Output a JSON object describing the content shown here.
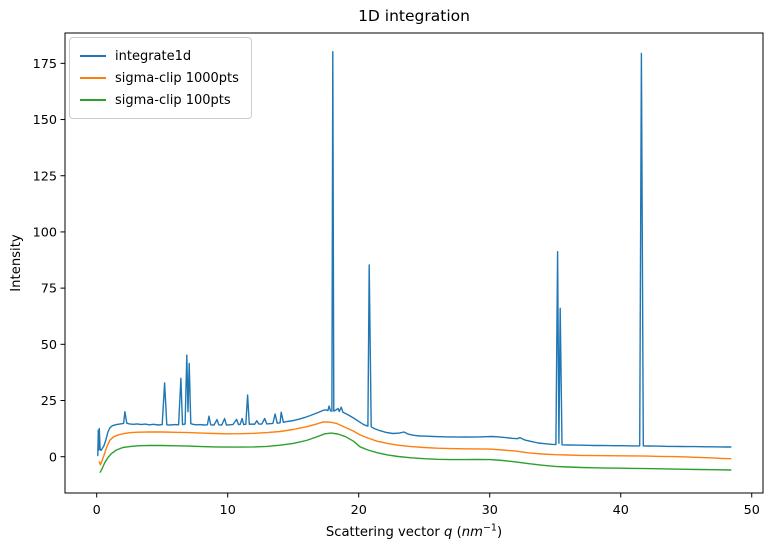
{
  "chart_data": {
    "type": "line",
    "title": "1D integration",
    "xlabel": "Scattering vector q (nm⁻¹)",
    "xlabel_parts": {
      "prefix": "Scattering vector ",
      "var": "q",
      "mid": " (",
      "unit": "nm",
      "exp": "−1",
      "close": ")"
    },
    "ylabel": "Intensity",
    "xlim": [
      -2.42,
      50.86
    ],
    "ylim": [
      -16.15,
      188.5
    ],
    "xticks": [
      0,
      10,
      20,
      30,
      40,
      50
    ],
    "yticks": [
      0,
      25,
      50,
      75,
      100,
      125,
      150,
      175
    ],
    "grid": false,
    "legend_position": "upper left",
    "series": [
      {
        "name": "integrate1d",
        "color": "#1f77b4",
        "points": [
          [
            0.08,
            0.5
          ],
          [
            0.12,
            11.8
          ],
          [
            0.16,
            3.0
          ],
          [
            0.2,
            12.5
          ],
          [
            0.26,
            3.2
          ],
          [
            0.33,
            2.8
          ],
          [
            0.42,
            3.6
          ],
          [
            0.55,
            4.8
          ],
          [
            0.7,
            7.5
          ],
          [
            0.85,
            10.8
          ],
          [
            1.0,
            12.8
          ],
          [
            1.2,
            13.8
          ],
          [
            1.5,
            14.3
          ],
          [
            1.8,
            14.6
          ],
          [
            2.05,
            14.8
          ],
          [
            2.15,
            20.0
          ],
          [
            2.3,
            14.9
          ],
          [
            2.5,
            14.6
          ],
          [
            2.8,
            14.4
          ],
          [
            3.1,
            14.6
          ],
          [
            3.4,
            14.3
          ],
          [
            3.7,
            14.5
          ],
          [
            4.0,
            14.2
          ],
          [
            4.35,
            14.4
          ],
          [
            4.7,
            14.1
          ],
          [
            5.0,
            14.3
          ],
          [
            5.18,
            32.8
          ],
          [
            5.35,
            14.2
          ],
          [
            5.65,
            14.1
          ],
          [
            5.95,
            14.3
          ],
          [
            6.25,
            14.2
          ],
          [
            6.43,
            34.9
          ],
          [
            6.55,
            14.3
          ],
          [
            6.75,
            14.5
          ],
          [
            6.88,
            45.2
          ],
          [
            6.97,
            20.0
          ],
          [
            7.06,
            41.5
          ],
          [
            7.18,
            14.7
          ],
          [
            7.35,
            14.4
          ],
          [
            7.6,
            14.2
          ],
          [
            7.9,
            14.3
          ],
          [
            8.2,
            14.1
          ],
          [
            8.45,
            14.2
          ],
          [
            8.57,
            18.0
          ],
          [
            8.7,
            14.2
          ],
          [
            8.95,
            14.1
          ],
          [
            9.18,
            16.5
          ],
          [
            9.32,
            14.2
          ],
          [
            9.55,
            14.1
          ],
          [
            9.76,
            17.0
          ],
          [
            9.9,
            14.1
          ],
          [
            10.15,
            14.2
          ],
          [
            10.4,
            14.3
          ],
          [
            10.68,
            16.6
          ],
          [
            10.82,
            14.3
          ],
          [
            10.95,
            14.4
          ],
          [
            11.1,
            17.0
          ],
          [
            11.22,
            14.3
          ],
          [
            11.38,
            14.4
          ],
          [
            11.52,
            27.4
          ],
          [
            11.65,
            14.4
          ],
          [
            11.85,
            14.5
          ],
          [
            12.05,
            14.4
          ],
          [
            12.22,
            16.0
          ],
          [
            12.38,
            14.5
          ],
          [
            12.6,
            14.5
          ],
          [
            12.82,
            17.0
          ],
          [
            12.98,
            14.6
          ],
          [
            13.2,
            14.7
          ],
          [
            13.45,
            14.8
          ],
          [
            13.62,
            19.0
          ],
          [
            13.78,
            14.9
          ],
          [
            14.0,
            15.1
          ],
          [
            14.08,
            19.8
          ],
          [
            14.25,
            15.3
          ],
          [
            14.5,
            15.6
          ],
          [
            14.8,
            15.9
          ],
          [
            15.1,
            16.2
          ],
          [
            15.5,
            16.8
          ],
          [
            15.9,
            17.5
          ],
          [
            16.3,
            18.3
          ],
          [
            16.7,
            19.2
          ],
          [
            17.0,
            19.9
          ],
          [
            17.3,
            20.7
          ],
          [
            17.5,
            20.8
          ],
          [
            17.65,
            20.5
          ],
          [
            17.74,
            22.5
          ],
          [
            17.85,
            20.4
          ],
          [
            17.95,
            20.3
          ],
          [
            18.02,
            180.2
          ],
          [
            18.1,
            20.3
          ],
          [
            18.28,
            20.8
          ],
          [
            18.42,
            21.5
          ],
          [
            18.52,
            20.1
          ],
          [
            18.66,
            22.0
          ],
          [
            18.8,
            19.7
          ],
          [
            19.0,
            19.2
          ],
          [
            19.3,
            18.3
          ],
          [
            19.6,
            17.2
          ],
          [
            20.0,
            15.7
          ],
          [
            20.4,
            14.2
          ],
          [
            20.7,
            13.6
          ],
          [
            20.8,
            85.3
          ],
          [
            20.95,
            13.3
          ],
          [
            21.2,
            12.5
          ],
          [
            21.6,
            11.6
          ],
          [
            22.1,
            10.8
          ],
          [
            22.6,
            10.3
          ],
          [
            23.1,
            10.5
          ],
          [
            23.45,
            11.0
          ],
          [
            23.8,
            10.0
          ],
          [
            24.2,
            9.5
          ],
          [
            24.7,
            9.2
          ],
          [
            25.2,
            9.1
          ],
          [
            25.7,
            9.0
          ],
          [
            26.2,
            8.9
          ],
          [
            26.7,
            8.8
          ],
          [
            27.2,
            8.8
          ],
          [
            27.7,
            8.7
          ],
          [
            28.2,
            8.8
          ],
          [
            28.7,
            8.7
          ],
          [
            29.2,
            8.8
          ],
          [
            29.7,
            8.9
          ],
          [
            30.2,
            9.0
          ],
          [
            30.7,
            8.8
          ],
          [
            31.2,
            8.5
          ],
          [
            31.7,
            8.2
          ],
          [
            32.1,
            8.0
          ],
          [
            32.3,
            8.5
          ],
          [
            32.7,
            7.4
          ],
          [
            33.2,
            6.7
          ],
          [
            33.7,
            6.1
          ],
          [
            34.2,
            5.8
          ],
          [
            34.7,
            5.5
          ],
          [
            35.05,
            5.4
          ],
          [
            35.18,
            91.2
          ],
          [
            35.28,
            6.0
          ],
          [
            35.38,
            66.0
          ],
          [
            35.52,
            5.3
          ],
          [
            36.0,
            5.2
          ],
          [
            36.5,
            5.15
          ],
          [
            37.0,
            5.1
          ],
          [
            37.5,
            5.05
          ],
          [
            38.0,
            5.0
          ],
          [
            38.5,
            5.0
          ],
          [
            39.0,
            4.95
          ],
          [
            39.5,
            4.9
          ],
          [
            40.0,
            4.9
          ],
          [
            40.5,
            4.85
          ],
          [
            41.0,
            4.8
          ],
          [
            41.45,
            4.8
          ],
          [
            41.58,
            179.4
          ],
          [
            41.72,
            4.8
          ],
          [
            42.1,
            4.75
          ],
          [
            42.6,
            4.7
          ],
          [
            43.1,
            4.65
          ],
          [
            43.6,
            4.6
          ],
          [
            44.1,
            4.6
          ],
          [
            44.6,
            4.55
          ],
          [
            45.1,
            4.5
          ],
          [
            45.6,
            4.5
          ],
          [
            46.1,
            4.45
          ],
          [
            46.6,
            4.4
          ],
          [
            47.1,
            4.4
          ],
          [
            47.6,
            4.35
          ],
          [
            48.0,
            4.3
          ],
          [
            48.4,
            4.3
          ]
        ]
      },
      {
        "name": "sigma-clip 1000pts",
        "color": "#ff7f0e",
        "points": [
          [
            0.2,
            -2.3
          ],
          [
            0.28,
            -3.6
          ],
          [
            0.4,
            -2.0
          ],
          [
            0.55,
            0.5
          ],
          [
            0.75,
            4.0
          ],
          [
            1.0,
            7.3
          ],
          [
            1.3,
            8.9
          ],
          [
            1.7,
            9.8
          ],
          [
            2.1,
            10.3
          ],
          [
            2.6,
            10.7
          ],
          [
            3.2,
            10.9
          ],
          [
            4.0,
            11.0
          ],
          [
            5.0,
            11.0
          ],
          [
            6.0,
            10.85
          ],
          [
            7.0,
            10.7
          ],
          [
            8.0,
            10.5
          ],
          [
            9.0,
            10.3
          ],
          [
            10.0,
            10.2
          ],
          [
            11.0,
            10.25
          ],
          [
            12.0,
            10.4
          ],
          [
            13.0,
            10.7
          ],
          [
            14.0,
            11.2
          ],
          [
            15.0,
            12.1
          ],
          [
            16.0,
            13.3
          ],
          [
            16.8,
            14.6
          ],
          [
            17.3,
            15.5
          ],
          [
            17.8,
            15.4
          ],
          [
            18.3,
            14.8
          ],
          [
            19.0,
            13.0
          ],
          [
            19.6,
            11.4
          ],
          [
            20.1,
            9.7
          ],
          [
            20.7,
            8.3
          ],
          [
            21.4,
            6.9
          ],
          [
            22.2,
            5.9
          ],
          [
            23.0,
            5.1
          ],
          [
            24.0,
            4.5
          ],
          [
            25.0,
            4.1
          ],
          [
            26.0,
            3.8
          ],
          [
            27.0,
            3.6
          ],
          [
            28.0,
            3.5
          ],
          [
            29.0,
            3.45
          ],
          [
            30.0,
            3.4
          ],
          [
            31.0,
            3.0
          ],
          [
            32.0,
            2.5
          ],
          [
            33.0,
            1.7
          ],
          [
            34.0,
            1.2
          ],
          [
            35.0,
            0.9
          ],
          [
            36.0,
            0.75
          ],
          [
            37.0,
            0.6
          ],
          [
            38.0,
            0.5
          ],
          [
            39.0,
            0.45
          ],
          [
            40.0,
            0.4
          ],
          [
            41.0,
            0.35
          ],
          [
            42.0,
            0.25
          ],
          [
            43.0,
            0.15
          ],
          [
            44.0,
            0.05
          ],
          [
            45.0,
            -0.1
          ],
          [
            46.0,
            -0.3
          ],
          [
            47.0,
            -0.55
          ],
          [
            47.7,
            -0.75
          ],
          [
            48.4,
            -0.9
          ]
        ]
      },
      {
        "name": "sigma-clip 100pts",
        "color": "#2ca02c",
        "points": [
          [
            0.27,
            -6.9
          ],
          [
            0.4,
            -5.5
          ],
          [
            0.6,
            -2.8
          ],
          [
            0.85,
            -0.5
          ],
          [
            1.1,
            1.3
          ],
          [
            1.5,
            3.0
          ],
          [
            2.0,
            4.1
          ],
          [
            2.6,
            4.6
          ],
          [
            3.3,
            4.9
          ],
          [
            4.0,
            5.0
          ],
          [
            5.0,
            5.0
          ],
          [
            6.0,
            4.85
          ],
          [
            7.0,
            4.7
          ],
          [
            8.0,
            4.5
          ],
          [
            9.0,
            4.35
          ],
          [
            10.0,
            4.25
          ],
          [
            11.0,
            4.25
          ],
          [
            12.0,
            4.35
          ],
          [
            13.0,
            4.6
          ],
          [
            14.0,
            5.1
          ],
          [
            15.0,
            5.9
          ],
          [
            16.0,
            7.2
          ],
          [
            16.8,
            8.8
          ],
          [
            17.4,
            10.2
          ],
          [
            17.9,
            10.5
          ],
          [
            18.4,
            10.1
          ],
          [
            19.0,
            8.9
          ],
          [
            19.6,
            6.9
          ],
          [
            20.1,
            4.4
          ],
          [
            20.7,
            3.0
          ],
          [
            21.4,
            1.8
          ],
          [
            22.2,
            0.8
          ],
          [
            23.0,
            0.1
          ],
          [
            24.0,
            -0.5
          ],
          [
            25.0,
            -0.9
          ],
          [
            26.0,
            -1.15
          ],
          [
            27.0,
            -1.3
          ],
          [
            28.0,
            -1.3
          ],
          [
            29.0,
            -1.25
          ],
          [
            30.0,
            -1.3
          ],
          [
            31.0,
            -1.7
          ],
          [
            32.0,
            -2.3
          ],
          [
            33.0,
            -3.1
          ],
          [
            34.0,
            -3.8
          ],
          [
            35.0,
            -4.3
          ],
          [
            36.0,
            -4.6
          ],
          [
            37.0,
            -4.8
          ],
          [
            38.0,
            -4.95
          ],
          [
            39.0,
            -5.05
          ],
          [
            40.0,
            -5.1
          ],
          [
            41.0,
            -5.2
          ],
          [
            42.0,
            -5.3
          ],
          [
            43.0,
            -5.4
          ],
          [
            44.0,
            -5.5
          ],
          [
            45.0,
            -5.6
          ],
          [
            46.0,
            -5.7
          ],
          [
            47.0,
            -5.8
          ],
          [
            48.4,
            -5.9
          ]
        ]
      }
    ]
  }
}
